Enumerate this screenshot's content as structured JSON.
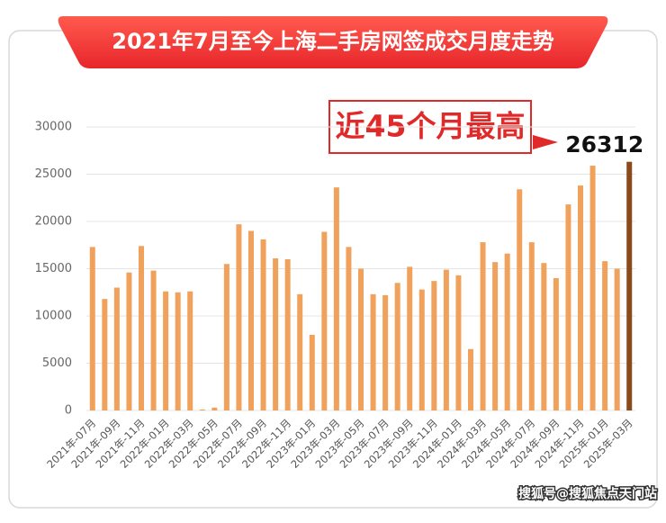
{
  "chart_data": {
    "type": "bar",
    "title": "2021年7月至今上海二手房网签成交月度走势",
    "annotation": "近45个月最高",
    "watermark": "搜狐号@搜狐焦点天门站",
    "categories": [
      "2021年-07月",
      null,
      "2021年-09月",
      null,
      "2021年-11月",
      null,
      "2022年-01月",
      null,
      "2022年-03月",
      null,
      "2022年-05月",
      null,
      "2022年-07月",
      null,
      "2022年-09月",
      null,
      "2022年-11月",
      null,
      "2023年-01月",
      null,
      "2023年-03月",
      null,
      "2023年-05月",
      null,
      "2023年-07月",
      null,
      "2023年-09月",
      null,
      "2023年-11月",
      null,
      "2024年-01月",
      null,
      "2024年-03月",
      null,
      "2024年-05月",
      null,
      "2024年-07月",
      null,
      "2024年-09月",
      null,
      "2024年-11月",
      null,
      "2025年-01月",
      null,
      "2025年-03月"
    ],
    "values": [
      17300,
      11800,
      13000,
      14600,
      17400,
      14800,
      12600,
      12500,
      12600,
      100,
      300,
      15500,
      19700,
      19000,
      18100,
      16100,
      16000,
      12300,
      8000,
      18900,
      23600,
      17300,
      15000,
      12300,
      12200,
      13500,
      15200,
      12800,
      13700,
      14900,
      14300,
      6500,
      17800,
      15700,
      16600,
      23400,
      17800,
      15600,
      14000,
      21800,
      23800,
      25900,
      15800,
      15000,
      26312
    ],
    "colors": [
      "#f0a25c",
      "#f0a25c",
      "#f0a25c",
      "#f0a25c",
      "#f0a25c",
      "#f0a25c",
      "#f0a25c",
      "#f0a25c",
      "#f0a25c",
      "#f0a25c",
      "#f0a25c",
      "#f0a25c",
      "#f0a25c",
      "#f0a25c",
      "#f0a25c",
      "#f0a25c",
      "#f0a25c",
      "#f0a25c",
      "#f0a25c",
      "#f0a25c",
      "#f0a25c",
      "#f0a25c",
      "#f0a25c",
      "#f0a25c",
      "#f0a25c",
      "#f0a25c",
      "#f0a25c",
      "#f0a25c",
      "#f0a25c",
      "#f0a25c",
      "#f0a25c",
      "#f0a25c",
      "#f0a25c",
      "#f0a25c",
      "#f0a25c",
      "#f0a25c",
      "#f0a25c",
      "#f0a25c",
      "#f0a25c",
      "#f0a25c",
      "#f0a25c",
      "#f0a25c",
      "#f0a25c",
      "#f0a25c",
      "#8a4b1c"
    ],
    "ylim": [
      0,
      30000
    ],
    "yticks": [
      0,
      5000,
      10000,
      15000,
      20000,
      25000,
      30000
    ],
    "grid": true
  }
}
